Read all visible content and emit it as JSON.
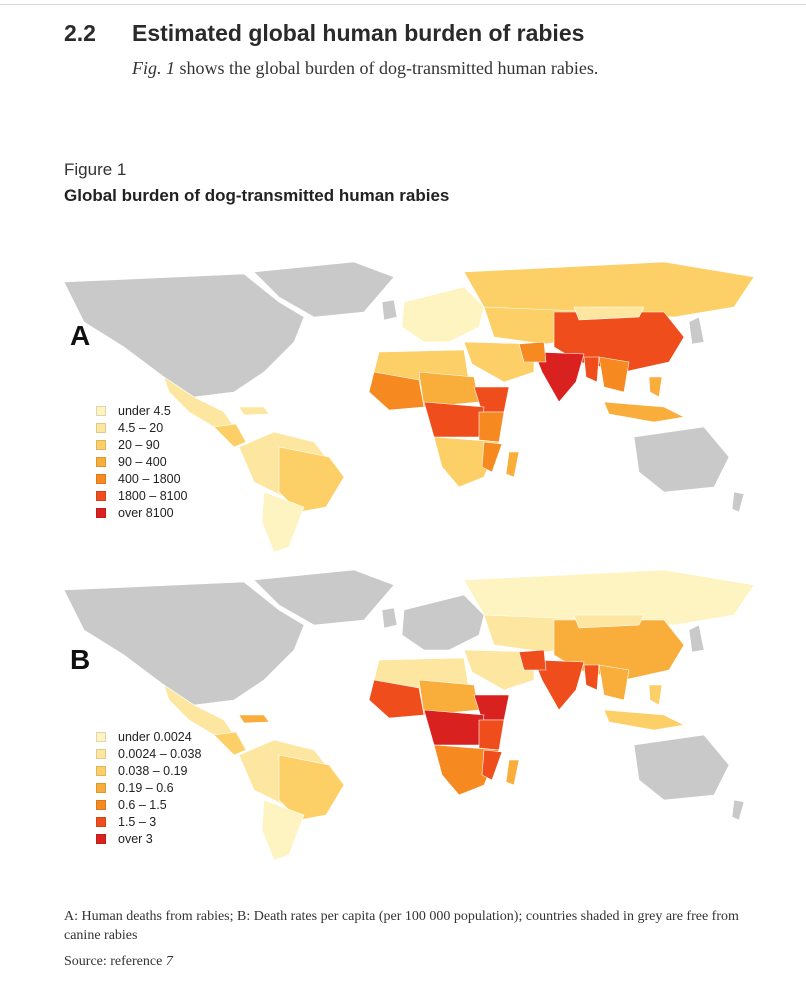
{
  "section": {
    "number": "2.2",
    "title": "Estimated global human burden of rabies",
    "intro_ref": "Fig. 1",
    "intro_text": " shows the global burden of dog-transmitted human rabies."
  },
  "figure": {
    "label": "Figure 1",
    "title": "Global burden of dog-transmitted human rabies"
  },
  "colors": {
    "grey": "#c9c9c9",
    "c1": "#fdf4c2",
    "c2": "#fde7a0",
    "c3": "#fccf67",
    "c4": "#f9ad3a",
    "c5": "#f68a21",
    "c6": "#ef4d1b",
    "c7": "#d9221f"
  },
  "panels": [
    {
      "letter": "A",
      "legend": [
        "under 4.5",
        "4.5 – 20",
        "20 – 90",
        "90 – 400",
        "400 – 1800",
        "1800 – 8100",
        "over 8100"
      ]
    },
    {
      "letter": "B",
      "legend": [
        "under 0.0024",
        "0.0024 – 0.038",
        "0.038 – 0.19",
        "0.19 – 0.6",
        "0.6 – 1.5",
        "1.5 – 3",
        "over 3"
      ]
    }
  ],
  "caption": "A: Human deaths from rabies; B: Death rates per capita (per 100 000 population); countries shaded in grey are free from canine rabies",
  "source": {
    "prefix": "Source: reference ",
    "ref": "7"
  }
}
